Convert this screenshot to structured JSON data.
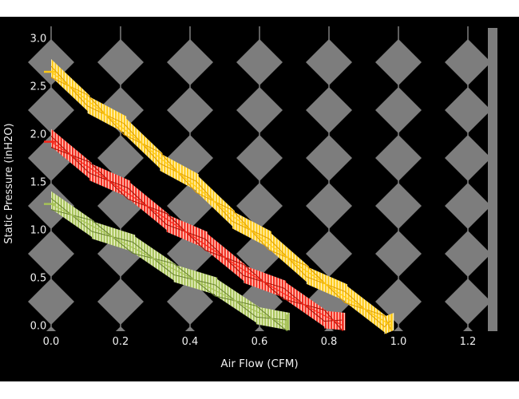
{
  "figure": {
    "background_color": "#ffffff",
    "plot_background_color": "#000000",
    "grid_color": "#7d7d7d",
    "text_color": "#f0f0f0"
  },
  "chart_data": {
    "type": "line",
    "title": "",
    "xlabel": "Air Flow (CFM)",
    "ylabel": "Static Pressure (inH2O)",
    "xlim": [
      -0.05,
      1.3
    ],
    "ylim": [
      -0.05,
      3.1
    ],
    "xticks": [
      0.0,
      0.2,
      0.4,
      0.6,
      0.8,
      1.0,
      1.2
    ],
    "xtick_labels": [
      "0.0",
      "0.2",
      "0.4",
      "0.6",
      "0.8",
      "1.0",
      "1.2"
    ],
    "yticks": [
      3.0,
      2.5,
      2.0,
      1.5,
      1.0,
      0.5,
      0.0
    ],
    "ytick_labels": [
      "3.0",
      "2.5",
      "2.0",
      "1.5",
      "1.0",
      "0.5",
      "0.0"
    ],
    "grid": "vertical-diamond-chains",
    "legend": "none",
    "series": [
      {
        "name": "series-gold",
        "color": "#ffc914",
        "stripe_light": "#fff3c4",
        "edge_color": "#e09d00",
        "x": [
          0.0,
          0.2,
          0.4,
          0.6,
          0.8,
          0.98
        ],
        "y": [
          2.65,
          2.08,
          1.5,
          0.92,
          0.4,
          0.0
        ]
      },
      {
        "name": "series-red",
        "color": "#f5281b",
        "stripe_light": "#ffd3c6",
        "edge_color": "#a81005",
        "x": [
          0.0,
          0.2,
          0.4,
          0.6,
          0.84
        ],
        "y": [
          1.92,
          1.43,
          0.95,
          0.47,
          0.0
        ]
      },
      {
        "name": "series-green",
        "color": "#a6c257",
        "stripe_light": "#edf3cf",
        "edge_color": "#66802f",
        "x": [
          0.0,
          0.2,
          0.4,
          0.6,
          0.68
        ],
        "y": [
          1.27,
          0.88,
          0.5,
          0.13,
          0.0
        ]
      }
    ]
  }
}
